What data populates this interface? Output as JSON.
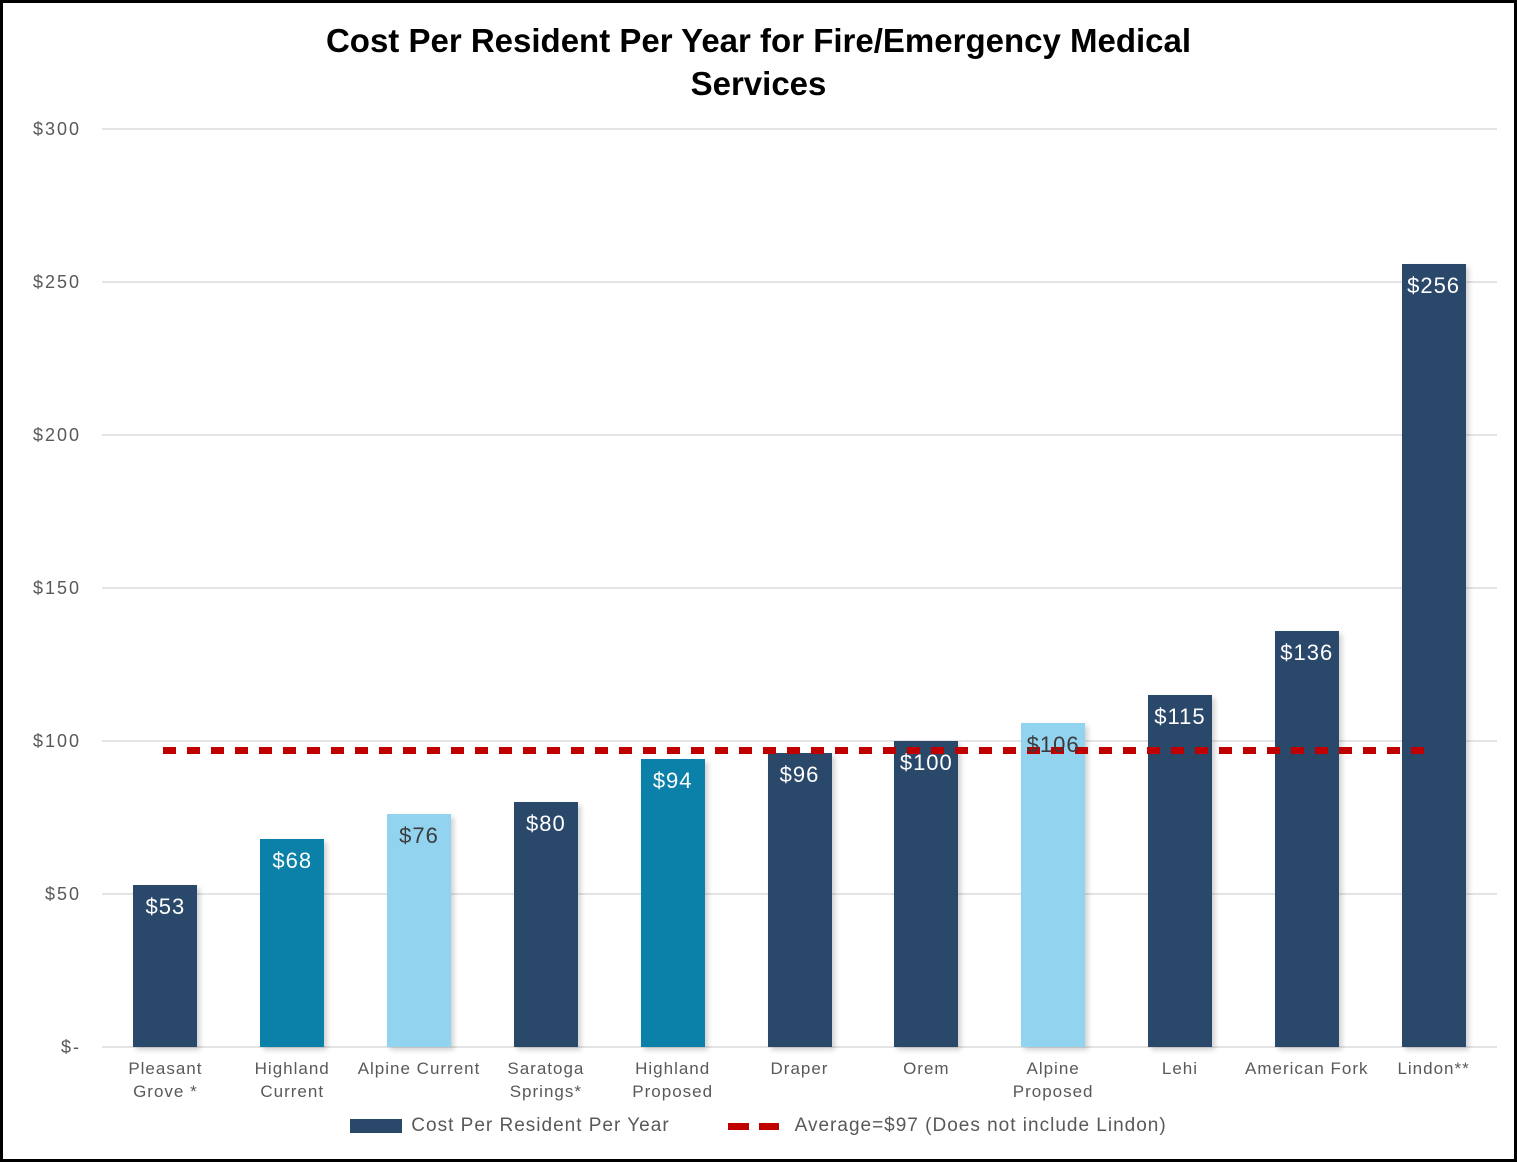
{
  "title": {
    "text": "Cost Per Resident Per Year for Fire/Emergency Medical\nServices"
  },
  "chart_data": {
    "type": "bar",
    "title": "Cost Per Resident Per Year for Fire/Emergency Medical Services",
    "categories": [
      "Pleasant Grove *",
      "Highland Current",
      "Alpine Current",
      "Saratoga Springs*",
      "Highland Proposed",
      "Draper",
      "Orem",
      "Alpine Proposed",
      "Lehi",
      "American Fork",
      "Lindon**"
    ],
    "values": [
      53,
      68,
      76,
      80,
      94,
      96,
      100,
      106,
      115,
      136,
      256
    ],
    "data_labels": [
      "$53",
      "$68",
      "$76",
      "$80",
      "$94",
      "$96",
      "$100",
      "$106",
      "$115",
      "$136",
      "$256"
    ],
    "bar_styles": [
      "navy",
      "teal",
      "light",
      "navy",
      "teal",
      "navy",
      "navy",
      "light",
      "navy",
      "navy",
      "navy"
    ],
    "xlabel": "",
    "ylabel": "",
    "ylim": [
      0,
      300
    ],
    "yticks": [
      {
        "label": "$300",
        "value": 300
      },
      {
        "label": "$250",
        "value": 250
      },
      {
        "label": "$200",
        "value": 200
      },
      {
        "label": "$150",
        "value": 150
      },
      {
        "label": "$100",
        "value": 100
      },
      {
        "label": "$50",
        "value": 50
      },
      {
        "label": "$-",
        "value": 0
      }
    ],
    "grid": "horizontal",
    "average_line": {
      "value": 97,
      "style": "dashed"
    },
    "legend": {
      "position": "bottom",
      "entries": [
        {
          "type": "bar",
          "label": "Cost Per Resident Per Year",
          "color_key": "navy"
        },
        {
          "type": "dashed-line",
          "label": "Average=$97 (Does not include Lindon)",
          "color_key": "average"
        }
      ]
    }
  },
  "colors": {
    "navy": "#2A486A",
    "teal": "#0B80A8",
    "light": "#92D4F0",
    "average": "#C00000",
    "grid": "#E4E4E4",
    "axis_text": "#595959",
    "label_on_dark": "#FFFFFF",
    "label_on_light": "#3B3B3B",
    "title_text": "#000000",
    "frame_border": "#000000"
  }
}
